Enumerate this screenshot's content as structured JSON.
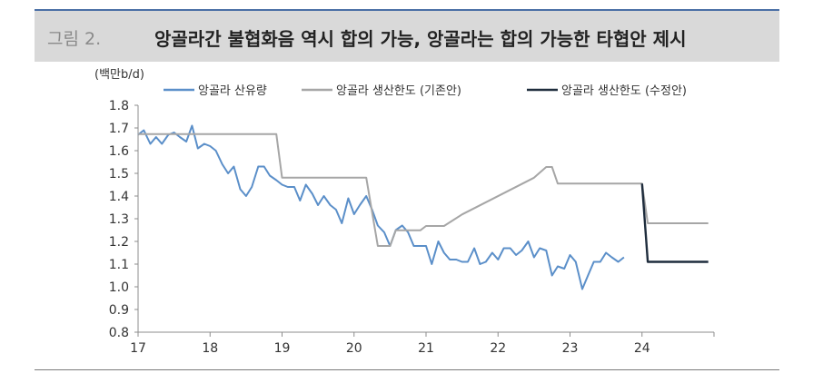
{
  "header": {
    "figure_label": "그림 2.",
    "title": "앙골라간 불협화음 역시 합의 가능, 앙골라는 합의 가능한 타협안 제시"
  },
  "colors": {
    "production": "#5b8fc9",
    "quota_old": "#a6a6a6",
    "quota_new": "#1f2d3d"
  },
  "chart_data": {
    "type": "line",
    "unit_label": "(백만b/d)",
    "ylim": [
      0.8,
      1.8
    ],
    "y_ticks": [
      "1.8",
      "1.7",
      "1.6",
      "1.5",
      "1.4",
      "1.3",
      "1.2",
      "1.1",
      "1.0",
      "0.9",
      "0.8"
    ],
    "xlim": [
      17,
      25
    ],
    "x_ticks": [
      "17",
      "18",
      "19",
      "20",
      "21",
      "22",
      "23",
      "24"
    ],
    "grid": false,
    "legend_position": "top",
    "series": [
      {
        "name": "앙골라 산유량",
        "color_key": "production",
        "points": [
          [
            17.0,
            1.67
          ],
          [
            17.08,
            1.69
          ],
          [
            17.17,
            1.63
          ],
          [
            17.25,
            1.66
          ],
          [
            17.33,
            1.63
          ],
          [
            17.42,
            1.67
          ],
          [
            17.5,
            1.68
          ],
          [
            17.58,
            1.66
          ],
          [
            17.67,
            1.64
          ],
          [
            17.75,
            1.71
          ],
          [
            17.83,
            1.61
          ],
          [
            17.92,
            1.63
          ],
          [
            18.0,
            1.62
          ],
          [
            18.08,
            1.6
          ],
          [
            18.17,
            1.54
          ],
          [
            18.25,
            1.5
          ],
          [
            18.33,
            1.53
          ],
          [
            18.42,
            1.43
          ],
          [
            18.5,
            1.4
          ],
          [
            18.58,
            1.44
          ],
          [
            18.67,
            1.53
          ],
          [
            18.75,
            1.53
          ],
          [
            18.83,
            1.49
          ],
          [
            18.92,
            1.47
          ],
          [
            19.0,
            1.45
          ],
          [
            19.08,
            1.44
          ],
          [
            19.17,
            1.44
          ],
          [
            19.25,
            1.38
          ],
          [
            19.33,
            1.45
          ],
          [
            19.42,
            1.41
          ],
          [
            19.5,
            1.36
          ],
          [
            19.58,
            1.4
          ],
          [
            19.67,
            1.36
          ],
          [
            19.75,
            1.34
          ],
          [
            19.83,
            1.28
          ],
          [
            19.92,
            1.39
          ],
          [
            20.0,
            1.32
          ],
          [
            20.08,
            1.36
          ],
          [
            20.17,
            1.4
          ],
          [
            20.25,
            1.34
          ],
          [
            20.33,
            1.27
          ],
          [
            20.42,
            1.24
          ],
          [
            20.5,
            1.18
          ],
          [
            20.58,
            1.25
          ],
          [
            20.67,
            1.27
          ],
          [
            20.75,
            1.24
          ],
          [
            20.83,
            1.18
          ],
          [
            20.92,
            1.18
          ],
          [
            21.0,
            1.18
          ],
          [
            21.08,
            1.1
          ],
          [
            21.17,
            1.2
          ],
          [
            21.25,
            1.15
          ],
          [
            21.33,
            1.12
          ],
          [
            21.42,
            1.12
          ],
          [
            21.5,
            1.11
          ],
          [
            21.58,
            1.11
          ],
          [
            21.67,
            1.17
          ],
          [
            21.75,
            1.1
          ],
          [
            21.83,
            1.11
          ],
          [
            21.92,
            1.15
          ],
          [
            22.0,
            1.12
          ],
          [
            22.08,
            1.17
          ],
          [
            22.17,
            1.17
          ],
          [
            22.25,
            1.14
          ],
          [
            22.33,
            1.16
          ],
          [
            22.42,
            1.2
          ],
          [
            22.5,
            1.13
          ],
          [
            22.58,
            1.17
          ],
          [
            22.67,
            1.16
          ],
          [
            22.75,
            1.05
          ],
          [
            22.83,
            1.09
          ],
          [
            22.92,
            1.08
          ],
          [
            23.0,
            1.14
          ],
          [
            23.08,
            1.11
          ],
          [
            23.17,
            0.99
          ],
          [
            23.25,
            1.05
          ],
          [
            23.33,
            1.11
          ],
          [
            23.42,
            1.11
          ],
          [
            23.5,
            1.15
          ],
          [
            23.58,
            1.13
          ],
          [
            23.67,
            1.11
          ],
          [
            23.75,
            1.13
          ]
        ]
      },
      {
        "name": "앙골라 생산한도 (기존안)",
        "color_key": "quota_old",
        "points": [
          [
            17.0,
            1.673
          ],
          [
            18.92,
            1.673
          ],
          [
            19.0,
            1.481
          ],
          [
            20.17,
            1.481
          ],
          [
            20.33,
            1.18
          ],
          [
            20.5,
            1.18
          ],
          [
            20.58,
            1.249
          ],
          [
            20.92,
            1.249
          ],
          [
            21.0,
            1.268
          ],
          [
            21.25,
            1.268
          ],
          [
            21.5,
            1.319
          ],
          [
            22.5,
            1.481
          ],
          [
            22.67,
            1.528
          ],
          [
            22.75,
            1.528
          ],
          [
            22.83,
            1.455
          ],
          [
            24.0,
            1.455
          ],
          [
            24.08,
            1.28
          ],
          [
            24.92,
            1.28
          ]
        ]
      },
      {
        "name": "앙골라 생산한도 (수정안)",
        "color_key": "quota_new",
        "points": [
          [
            24.0,
            1.455
          ],
          [
            24.08,
            1.11
          ],
          [
            24.92,
            1.11
          ]
        ]
      }
    ]
  }
}
